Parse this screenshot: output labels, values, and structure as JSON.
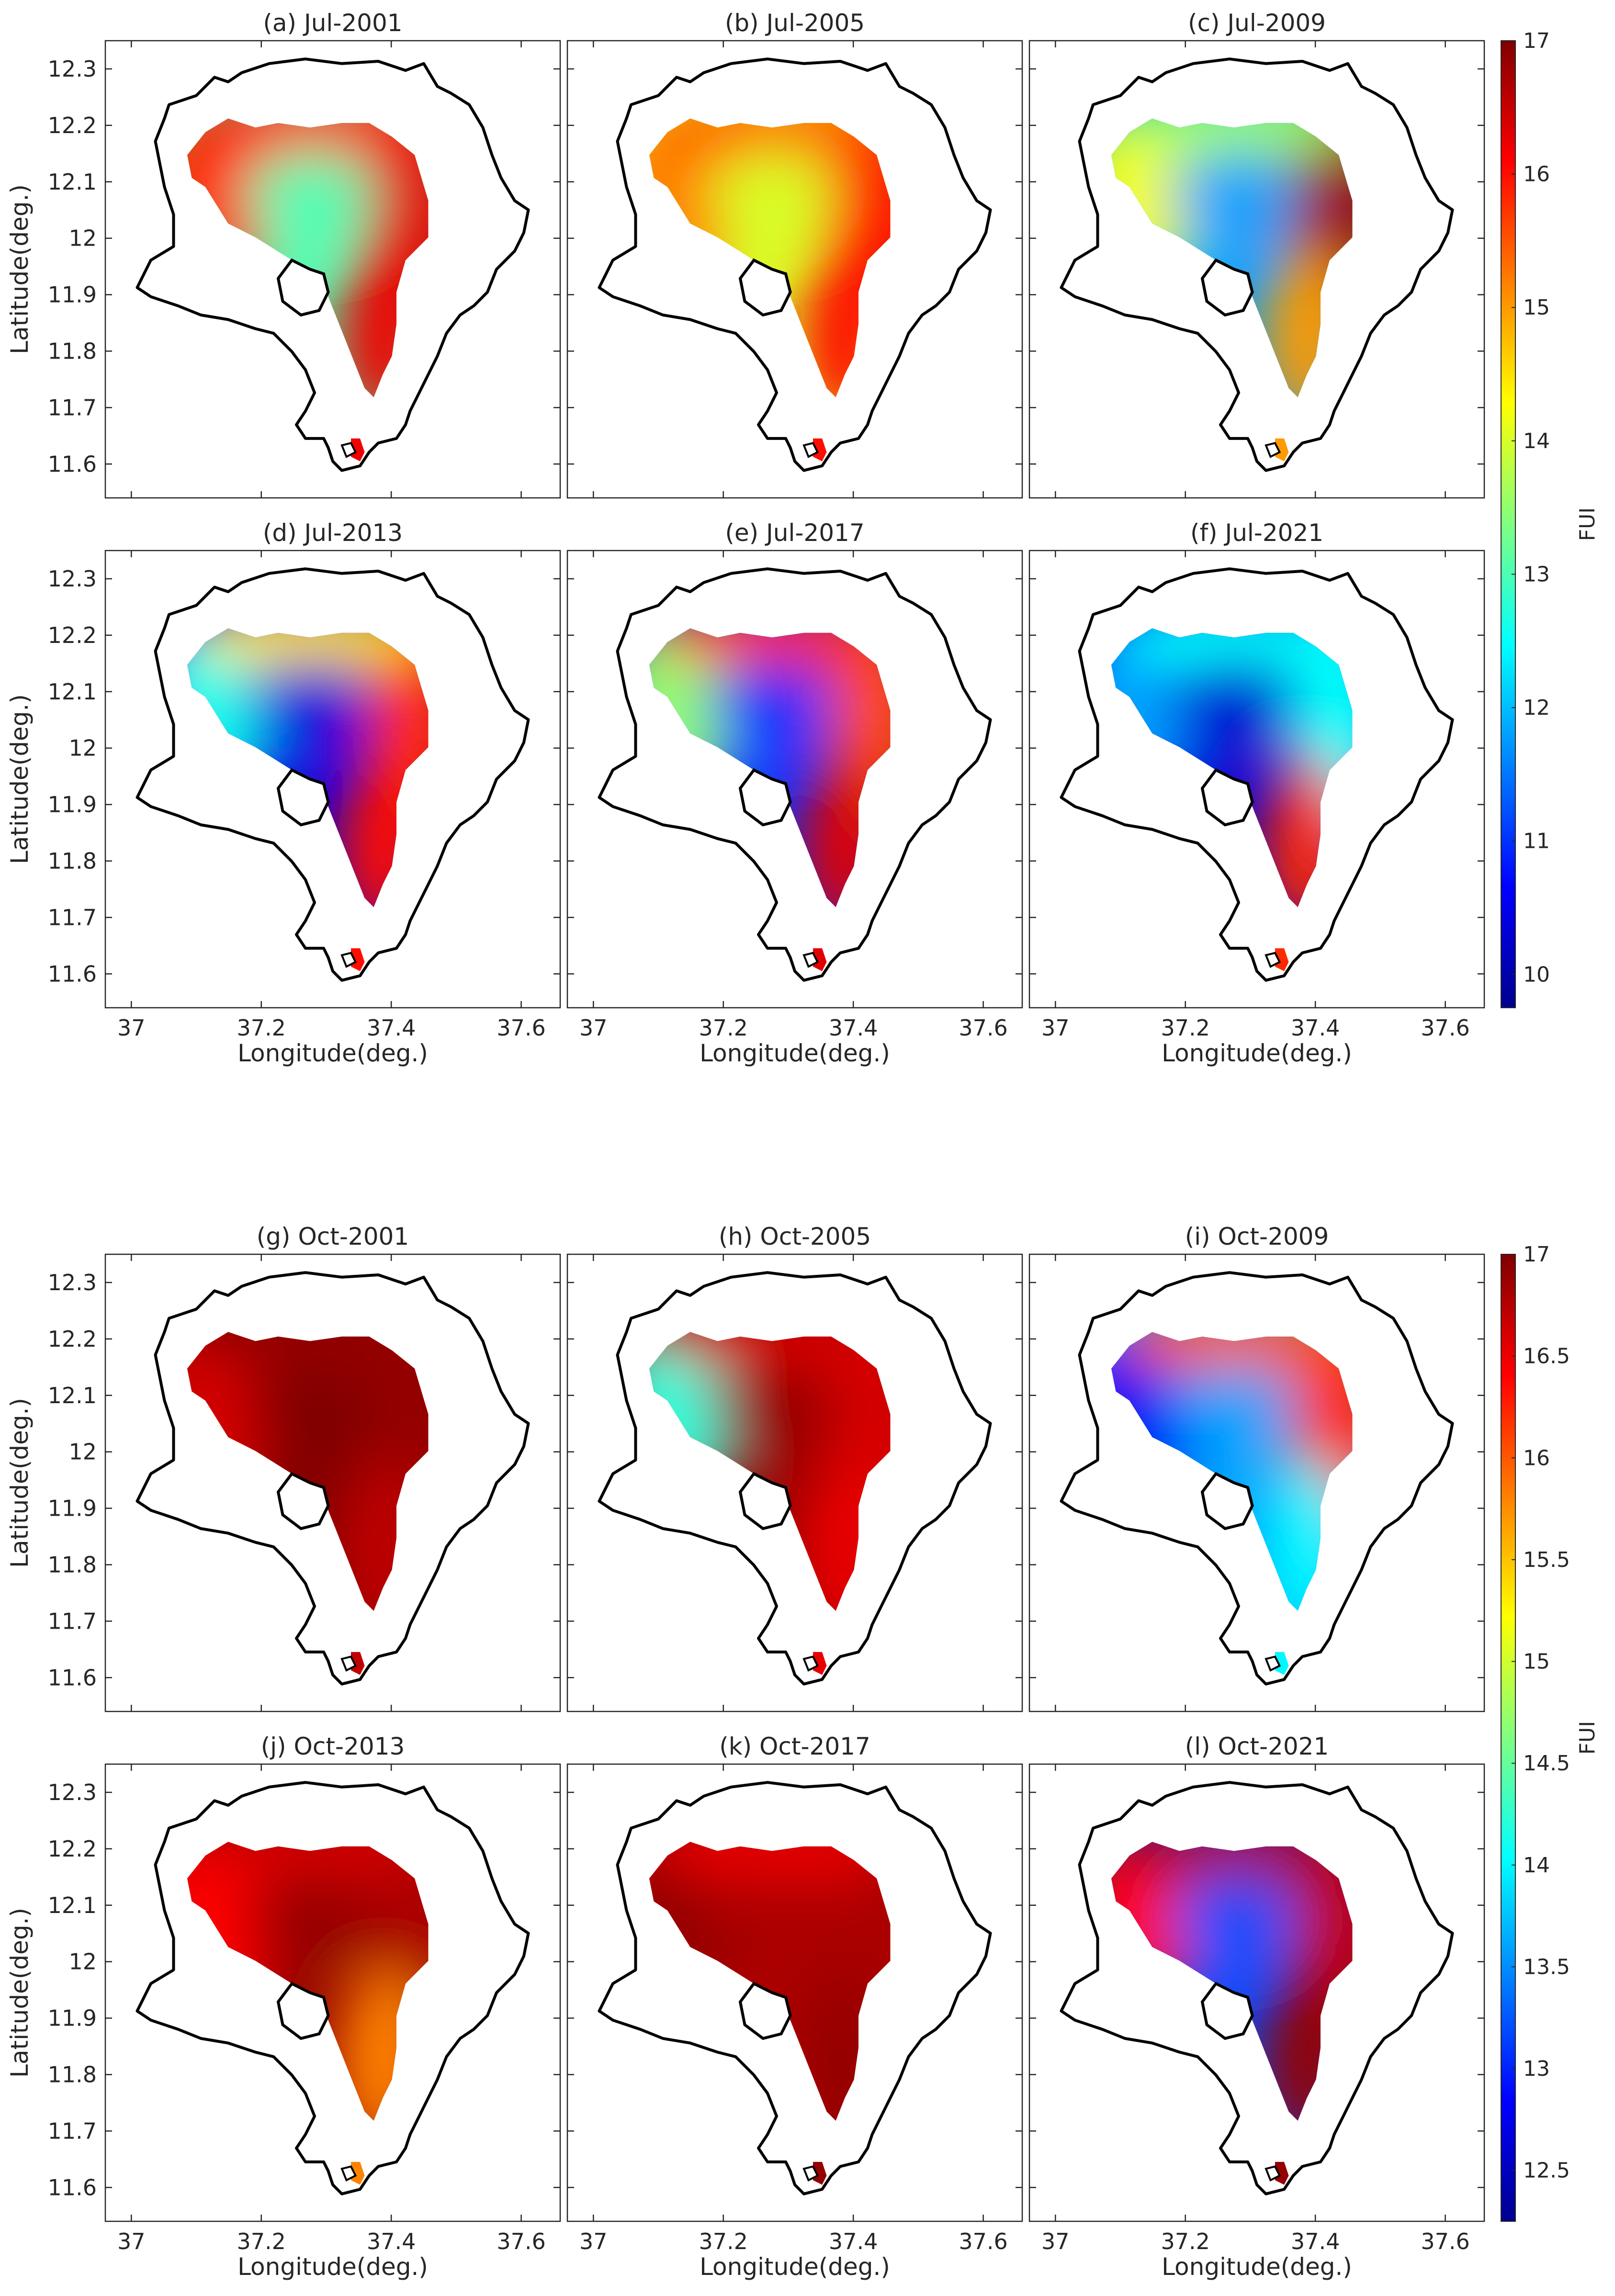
{
  "figure": {
    "description_free": true
  },
  "colors": {
    "shoreline": "#000000",
    "axis": "#262626",
    "jet": [
      "#00008f",
      "#0000ff",
      "#0080ff",
      "#00ffff",
      "#80ff80",
      "#ffff00",
      "#ff8000",
      "#ff0000",
      "#800000"
    ]
  },
  "chart_data": [
    {
      "type": "heatmap",
      "group": "July",
      "variable": "FUI",
      "colorbar": {
        "label": "FUI",
        "min": 9.75,
        "max": 17,
        "ticks": [
          10,
          11,
          12,
          13,
          14,
          15,
          16,
          17
        ],
        "tick_labels": [
          "10",
          "11",
          "12",
          "13",
          "14",
          "15",
          "16",
          "17"
        ]
      },
      "xlabel": "Longitude(deg.)",
      "ylabel": "Latitude(deg.)",
      "xlim": [
        36.96,
        37.66
      ],
      "ylim": [
        11.54,
        12.35
      ],
      "xticks": [
        37,
        37.2,
        37.4,
        37.6
      ],
      "xtick_labels": [
        "37",
        "37.2",
        "37.4",
        "37.6"
      ],
      "yticks": [
        11.6,
        11.7,
        11.8,
        11.9,
        12,
        12.1,
        12.2,
        12.3
      ],
      "ytick_labels": [
        "11.6",
        "11.7",
        "11.8",
        "11.9",
        "12",
        "12.1",
        "12.2",
        "12.3"
      ],
      "panels": [
        {
          "title": "(a) Jul-2001",
          "approx_fui": {
            "center": 13.0,
            "west": 15.8,
            "east": 16.3,
            "north": 15.9,
            "south": 16.2
          }
        },
        {
          "title": "(b) Jul-2005",
          "approx_fui": {
            "center": 14.0,
            "west": 15.2,
            "east": 16.1,
            "north": 15.4,
            "south": 16.0
          }
        },
        {
          "title": "(c) Jul-2009",
          "approx_fui": {
            "center": 11.8,
            "west": 14.2,
            "east": 16.8,
            "north": 13.6,
            "south": 15.0
          }
        },
        {
          "title": "(d) Jul-2013",
          "approx_fui": {
            "center": 10.4,
            "west": 12.6,
            "east": 15.8,
            "north": 14.5,
            "south": 16.0
          }
        },
        {
          "title": "(e) Jul-2017",
          "approx_fui": {
            "center": 11.0,
            "west": 13.5,
            "east": 15.6,
            "north": 15.8,
            "south": 16.3
          }
        },
        {
          "title": "(f) Jul-2021",
          "approx_fui": {
            "center": 10.3,
            "west": 11.8,
            "east": 12.5,
            "north": 12.5,
            "south": 15.8
          }
        }
      ]
    },
    {
      "type": "heatmap",
      "group": "October",
      "variable": "FUI",
      "colorbar": {
        "label": "FUI",
        "min": 12.25,
        "max": 17,
        "ticks": [
          12.5,
          13,
          13.5,
          14,
          14.5,
          15,
          15.5,
          16,
          16.5,
          17
        ],
        "tick_labels": [
          "12.5",
          "13",
          "13.5",
          "14",
          "14.5",
          "15",
          "15.5",
          "16",
          "16.5",
          "17"
        ]
      },
      "xlabel": "Longitude(deg.)",
      "ylabel": "Latitude(deg.)",
      "xlim": [
        36.96,
        37.66
      ],
      "ylim": [
        11.54,
        12.35
      ],
      "xticks": [
        37,
        37.2,
        37.4,
        37.6
      ],
      "xtick_labels": [
        "37",
        "37.2",
        "37.4",
        "37.6"
      ],
      "yticks": [
        11.6,
        11.7,
        11.8,
        11.9,
        12,
        12.1,
        12.2,
        12.3
      ],
      "ytick_labels": [
        "11.6",
        "11.7",
        "11.8",
        "11.9",
        "12",
        "12.1",
        "12.2",
        "12.3"
      ],
      "panels": [
        {
          "title": "(g) Oct-2001",
          "approx_fui": {
            "center": 17.0,
            "west": 16.6,
            "east": 16.9,
            "north": 16.9,
            "south": 16.7
          }
        },
        {
          "title": "(h) Oct-2005",
          "approx_fui": {
            "center": 16.9,
            "west": 14.2,
            "east": 16.6,
            "north": 16.6,
            "south": 16.5
          }
        },
        {
          "title": "(i) Oct-2009",
          "approx_fui": {
            "center": 13.6,
            "west": 12.8,
            "east": 16.2,
            "north": 16.0,
            "south": 14.0
          }
        },
        {
          "title": "(j) Oct-2013",
          "approx_fui": {
            "center": 16.9,
            "west": 16.4,
            "east": 16.8,
            "north": 16.6,
            "south": 15.8
          }
        },
        {
          "title": "(k) Oct-2017",
          "approx_fui": {
            "center": 16.8,
            "west": 16.9,
            "east": 16.8,
            "north": 16.5,
            "south": 16.9
          }
        },
        {
          "title": "(l) Oct-2021",
          "approx_fui": {
            "center": 13.2,
            "west": 16.4,
            "east": 16.7,
            "north": 16.8,
            "south": 16.9
          }
        }
      ]
    }
  ]
}
